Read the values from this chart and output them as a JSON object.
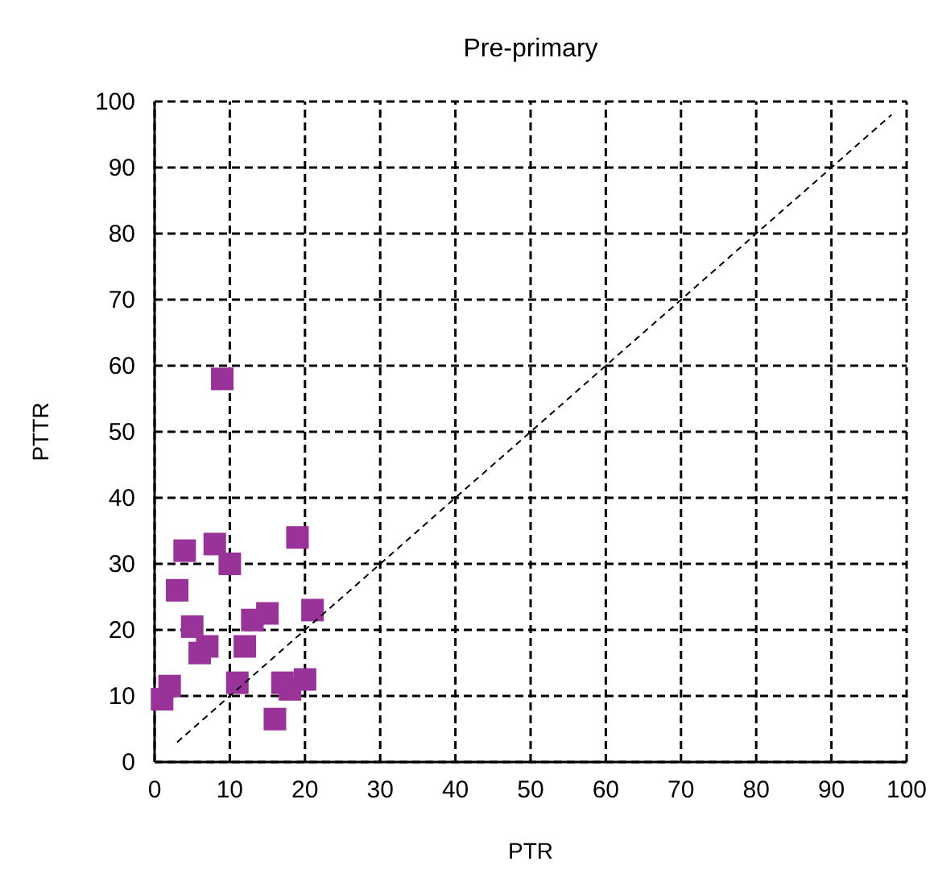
{
  "chart_data": {
    "type": "scatter",
    "title": "Pre-primary",
    "xlabel": "PTR",
    "ylabel": "PTTR",
    "xlim": [
      0,
      100
    ],
    "ylim": [
      0,
      100
    ],
    "xticks": [
      0,
      10,
      20,
      30,
      40,
      50,
      60,
      70,
      80,
      90,
      100
    ],
    "yticks": [
      0,
      10,
      20,
      30,
      40,
      50,
      60,
      70,
      80,
      90,
      100
    ],
    "grid": true,
    "marker": "square",
    "series": [
      {
        "color": "#993399",
        "x": [
          1,
          2,
          3,
          4,
          5,
          6,
          7,
          8,
          9,
          10,
          11,
          12,
          13,
          15,
          16,
          17,
          18,
          19,
          20,
          21
        ],
        "values": [
          9.5,
          11.5,
          26,
          32,
          20.5,
          16.5,
          17.5,
          33,
          58,
          30,
          12,
          17.5,
          21.5,
          22.5,
          6.5,
          12,
          11,
          34,
          12.5,
          23
        ]
      },
      {
        "type": "line",
        "color": "#000000",
        "line_style": "dashed",
        "marker": "none",
        "x": [
          3,
          98
        ],
        "values": [
          3,
          98
        ]
      }
    ]
  }
}
